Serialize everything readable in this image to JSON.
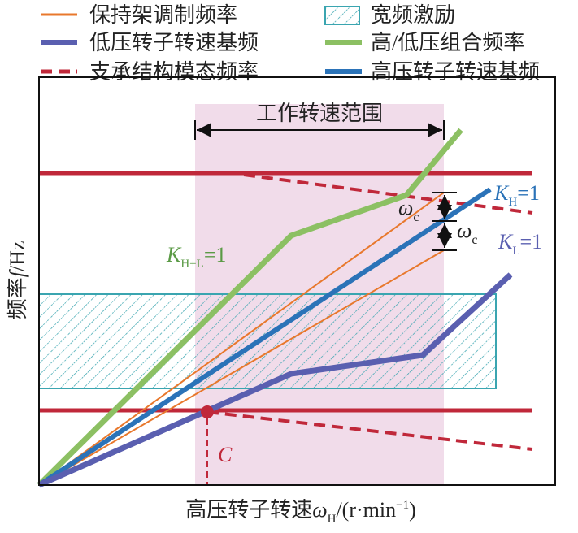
{
  "legend": [
    {
      "label": "保持架调制频率"
    },
    {
      "label": "宽频激励"
    },
    {
      "label": "低压转子转速基频"
    },
    {
      "label": "高/低压组合频率"
    },
    {
      "label": "支承结构模态频率"
    },
    {
      "label": "高压转子转速基频"
    }
  ],
  "range_label": "工作转速范围",
  "omega_label": {
    "symbol": "ω",
    "sub": "c"
  },
  "k_h": {
    "symbol": "K",
    "sub": "H",
    "tail": "=1"
  },
  "k_l": {
    "symbol": "K",
    "sub": "L",
    "tail": "=1"
  },
  "k_hl": {
    "symbol": "K",
    "sub": "H+L",
    "tail": "=1"
  },
  "point_label": "C",
  "y_axis_label": {
    "text": "频率",
    "symbol": "f",
    "unit": "/Hz"
  },
  "x_axis_label": {
    "text": "高压转子转速",
    "symbol": "ω",
    "sub": "H",
    "unit": "/(r·min",
    "sup": "−1",
    "close": ")"
  }
}
